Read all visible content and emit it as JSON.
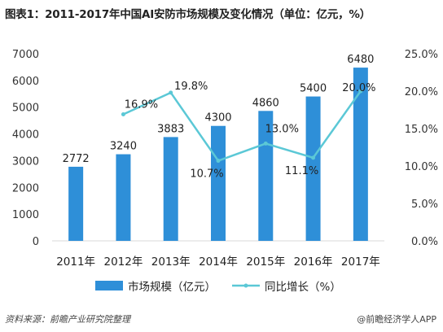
{
  "title": "图表1：2011-2017年中国AI安防市场规模及变化情况（单位：亿元，%）",
  "source": "资料来源：前瞻产业研究院整理",
  "watermark": "@前瞻经济学人APP",
  "colors": {
    "bar": "#2E8FD8",
    "line": "#5BC8D6"
  },
  "chart_data": {
    "type": "bar",
    "categories": [
      "2011年",
      "2012年",
      "2013年",
      "2014年",
      "2015年",
      "2016年",
      "2017年"
    ],
    "series": [
      {
        "name": "市场规模（亿元）",
        "type": "bar",
        "axis": "left",
        "values": [
          2772,
          3240,
          3883,
          4300,
          4860,
          5400,
          6480
        ],
        "labels": [
          "2772",
          "3240",
          "3883",
          "4300",
          "4860",
          "5400",
          "6480"
        ]
      },
      {
        "name": "同比增长（%）",
        "type": "line",
        "axis": "right",
        "values": [
          null,
          16.9,
          19.8,
          10.7,
          13.0,
          11.1,
          20.0
        ],
        "labels": [
          "",
          "16.9%",
          "19.8%",
          "10.7%",
          "13.0%",
          "11.1%",
          "20.0%"
        ]
      }
    ],
    "left_axis": {
      "min": 0,
      "max": 7000,
      "step": 1000,
      "ticks": [
        "0",
        "1000",
        "2000",
        "3000",
        "4000",
        "5000",
        "6000",
        "7000"
      ]
    },
    "right_axis": {
      "min": 0,
      "max": 25,
      "step": 5,
      "ticks": [
        "0.0%",
        "5.0%",
        "10.0%",
        "15.0%",
        "20.0%",
        "25.0%"
      ]
    },
    "legend_position": "bottom",
    "grid": false
  }
}
